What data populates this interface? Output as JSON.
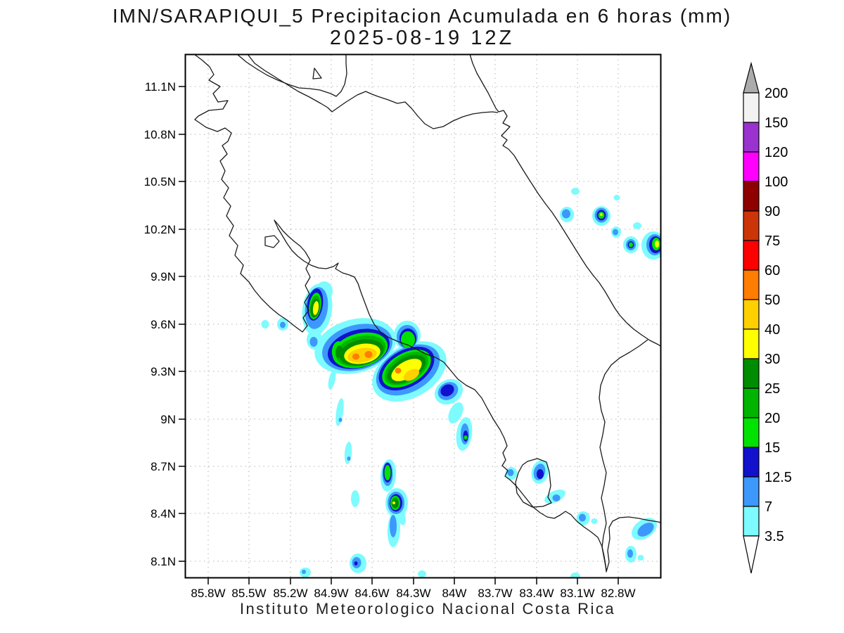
{
  "title": {
    "line1": "IMN/SARAPIQUI_5 Precipitacion Acumulada en 6 horas (mm)",
    "line2": "2025-08-19 12Z"
  },
  "caption": "Instituto Meteorologico Nacional Costa Rica",
  "chart_data": {
    "type": "heatmap",
    "subtype": "filled-contour-precipitation-map",
    "title": "IMN/SARAPIQUI_5 Precipitacion Acumulada en 6 horas (mm)",
    "valid_time": "2025-08-19 12Z",
    "units": "mm",
    "region": "Costa Rica",
    "grid_style": "dotted",
    "lat_ticks": [
      "11.1N",
      "10.8N",
      "10.5N",
      "10.2N",
      "9.9N",
      "9.6N",
      "9.3N",
      "9N",
      "8.7N",
      "8.4N",
      "8.1N"
    ],
    "lon_ticks": [
      "85.8W",
      "85.5W",
      "85.2W",
      "84.9W",
      "84.6W",
      "84.3W",
      "84W",
      "83.7W",
      "83.4W",
      "83.1W",
      "82.8W"
    ],
    "lat_range_deg_n": [
      8.1,
      11.1
    ],
    "lon_range_deg_w": [
      85.8,
      82.8
    ],
    "colorbar": {
      "position": "right",
      "levels": [
        3.5,
        7,
        12.5,
        15,
        20,
        25,
        30,
        40,
        50,
        60,
        75,
        90,
        100,
        120,
        150,
        200
      ],
      "colors": [
        "#7DFBFE",
        "#3D98FC",
        "#1111CE",
        "#00E300",
        "#00B400",
        "#008C00",
        "#FFFF00",
        "#FFD000",
        "#FF7D00",
        "#FF0000",
        "#CC3508",
        "#8F0000",
        "#FF00FF",
        "#9932CE",
        "#F2F2F2"
      ],
      "under_color": "#FFFFFF",
      "over_color": "#ABABAB"
    },
    "precip_cells": [
      {
        "lat": 9.39,
        "lon_w": 84.72,
        "max_mm": 60
      },
      {
        "lat": 9.3,
        "lon_w": 84.41,
        "max_mm": 60
      },
      {
        "lat": 9.73,
        "lon_w": 85.02,
        "max_mm": 40
      },
      {
        "lat": 8.46,
        "lon_w": 84.43,
        "max_mm": 40
      },
      {
        "lat": 8.66,
        "lon_w": 84.49,
        "max_mm": 25
      },
      {
        "lat": 8.89,
        "lon_w": 83.92,
        "max_mm": 25
      },
      {
        "lat": 10.29,
        "lon_w": 82.92,
        "max_mm": 40
      },
      {
        "lat": 10.1,
        "lon_w": 82.52,
        "max_mm": 50
      },
      {
        "lat": 10.1,
        "lon_w": 82.71,
        "max_mm": 30
      },
      {
        "lat": 8.66,
        "lon_w": 83.38,
        "max_mm": 15
      },
      {
        "lat": 8.09,
        "lon_w": 84.71,
        "max_mm": 15
      },
      {
        "lat": 8.3,
        "lon_w": 82.6,
        "max_mm": 12.5
      }
    ]
  }
}
